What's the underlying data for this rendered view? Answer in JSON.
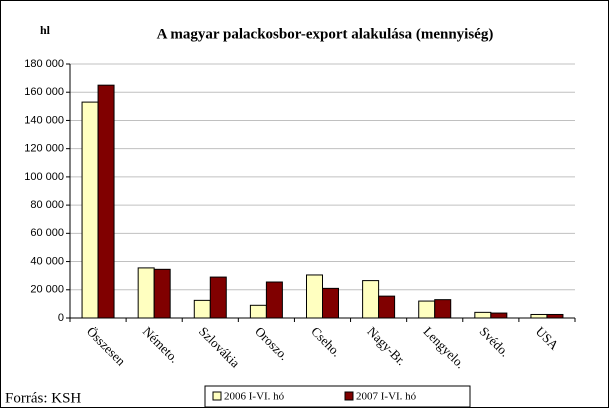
{
  "chart_data": {
    "type": "bar",
    "title": "A magyar palackosbor-export alakulása (mennyiség)",
    "y_unit": "hl",
    "source": "Forrás: KSH",
    "categories": [
      "Összesen",
      "Németo.",
      "Szlovákia",
      "Oroszo.",
      "Cseho.",
      "Nagy-Br.",
      "Lengyelo.",
      "Svédo.",
      "USA"
    ],
    "series": [
      {
        "name": "2006 I-VI. hó",
        "color": "#ffffc0",
        "values": [
          153000,
          35500,
          12500,
          9000,
          30500,
          26500,
          12000,
          4000,
          2500
        ]
      },
      {
        "name": "2007 I-VI. hó",
        "color": "#800000",
        "values": [
          165000,
          34500,
          29000,
          25500,
          21000,
          15500,
          13000,
          3500,
          2500
        ]
      }
    ],
    "ylim": [
      0,
      180000
    ],
    "yticks": [
      0,
      {
        "value": 20000,
        "label": "20 000"
      },
      {
        "value": 40000,
        "label": "40 000"
      },
      {
        "value": 60000,
        "label": "60 000"
      },
      {
        "value": 80000,
        "label": "80 000"
      },
      {
        "value": 100000,
        "label": "100 000"
      },
      {
        "value": 120000,
        "label": "120 000"
      },
      {
        "value": 140000,
        "label": "140 000"
      },
      {
        "value": 160000,
        "label": "160 000"
      },
      {
        "value": 180000,
        "label": "180 000"
      }
    ],
    "grid": true,
    "legend": "bottom"
  }
}
